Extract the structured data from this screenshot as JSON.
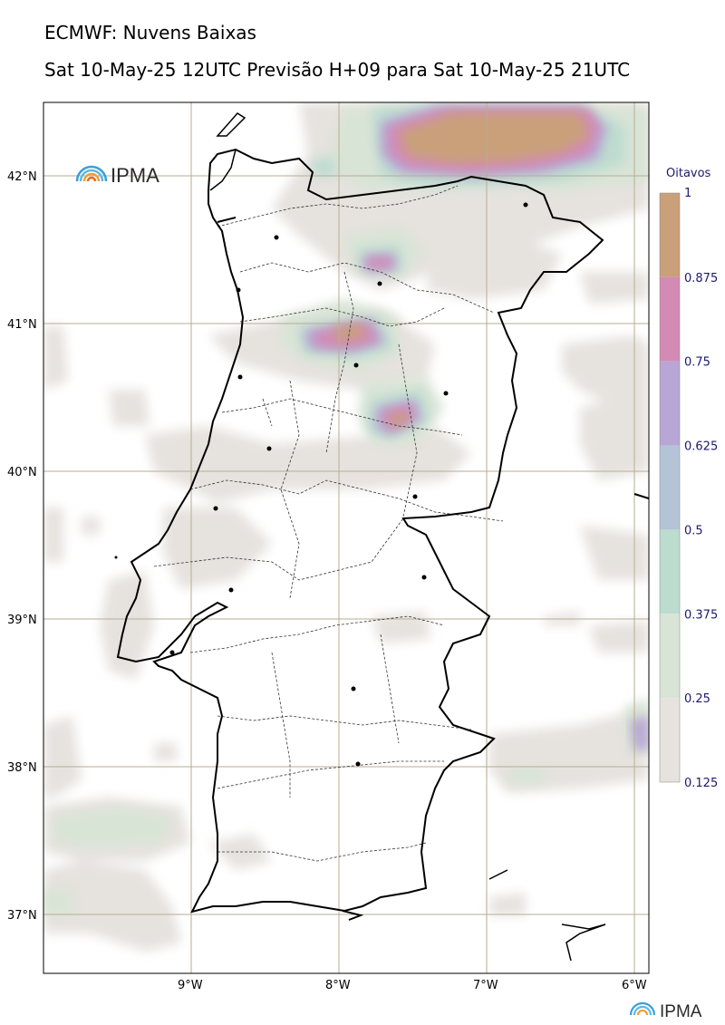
{
  "title_line1": "ECMWF: Nuvens Baixas",
  "title_line2": "Sat 10-May-25 12UTC Previsão H+09 para Sat 10-May-25 21UTC",
  "logo_text": "IPMA",
  "footer_logo_text": "IPMA",
  "latitude_labels": [
    "42°N",
    "41°N",
    "40°N",
    "39°N",
    "38°N",
    "37°N"
  ],
  "longitude_labels": [
    "9°W",
    "8°W",
    "7°W",
    "6°W"
  ],
  "colorbar": {
    "title": "Oitavos",
    "ticks": [
      "1",
      "0.875",
      "0.75",
      "0.625",
      "0.5",
      "0.375",
      "0.25",
      "0.125"
    ],
    "colors": [
      "#c9a07a",
      "#d38ab4",
      "#b8a6d6",
      "#b4c4d6",
      "#bddcd0",
      "#d8e4d6",
      "#e6e2de"
    ]
  }
}
